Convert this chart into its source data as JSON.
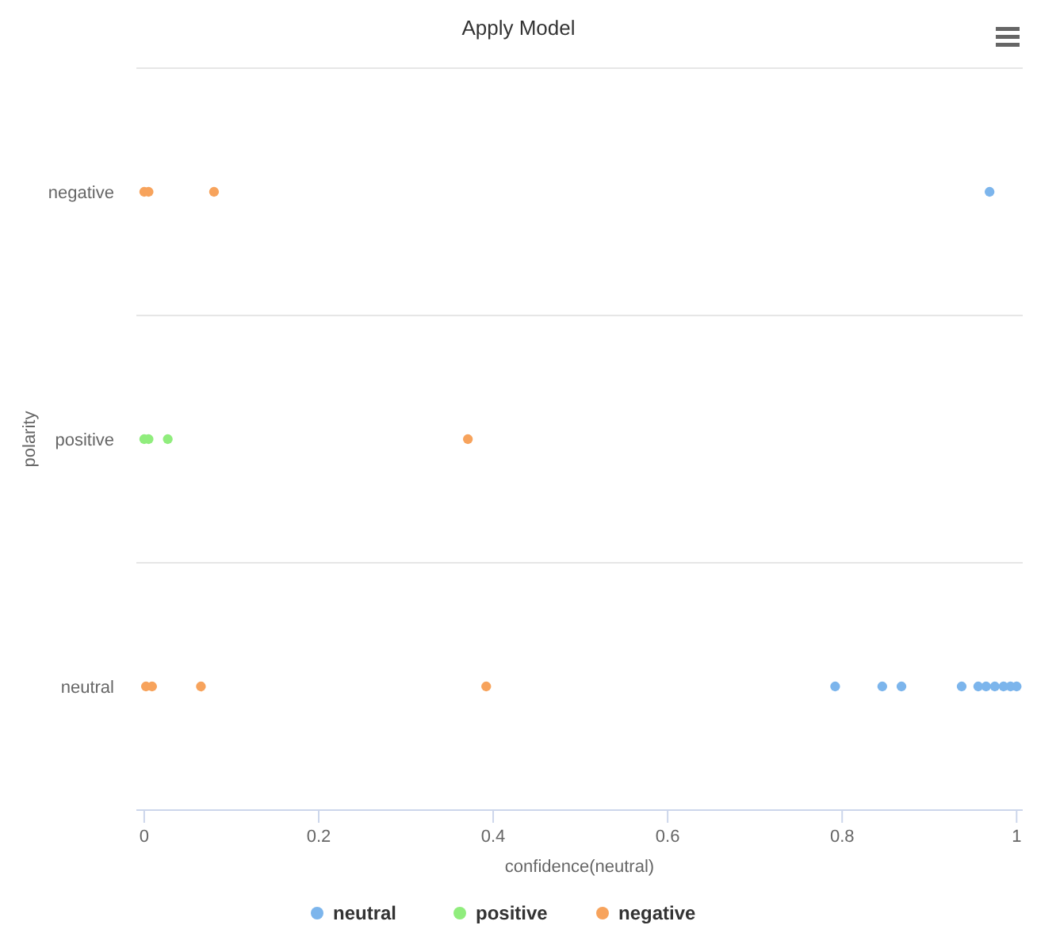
{
  "chart_data": {
    "type": "scatter",
    "orientation": "horizontal",
    "title": "Apply Model",
    "xlabel": "confidence(neutral)",
    "ylabel": "polarity",
    "categories": [
      "negative",
      "positive",
      "neutral"
    ],
    "xlim": [
      -0.009,
      1.007
    ],
    "xticks": [
      0,
      0.2,
      0.4,
      0.6,
      0.8,
      1
    ],
    "grid": "y",
    "legend": "bottom",
    "marker": "circle",
    "series": [
      {
        "name": "neutral",
        "color": "#7cb5ec",
        "values": [
          0.969,
          0.792,
          0.846,
          0.868,
          0.937,
          0.956,
          0.965,
          0.975,
          0.985,
          0.993,
          1.0
        ],
        "x": [
          "negative",
          "neutral",
          "neutral",
          "neutral",
          "neutral",
          "neutral",
          "neutral",
          "neutral",
          "neutral",
          "neutral",
          "neutral"
        ]
      },
      {
        "name": "positive",
        "color": "#90ed7d",
        "values": [
          0.0,
          0.005,
          0.027
        ],
        "x": [
          "positive",
          "positive",
          "positive"
        ]
      },
      {
        "name": "negative",
        "color": "#f7a35c",
        "values": [
          0.0,
          0.005,
          0.08,
          0.371,
          0.002,
          0.009,
          0.065,
          0.392
        ],
        "x": [
          "negative",
          "negative",
          "negative",
          "positive",
          "neutral",
          "neutral",
          "neutral",
          "neutral"
        ]
      }
    ]
  }
}
